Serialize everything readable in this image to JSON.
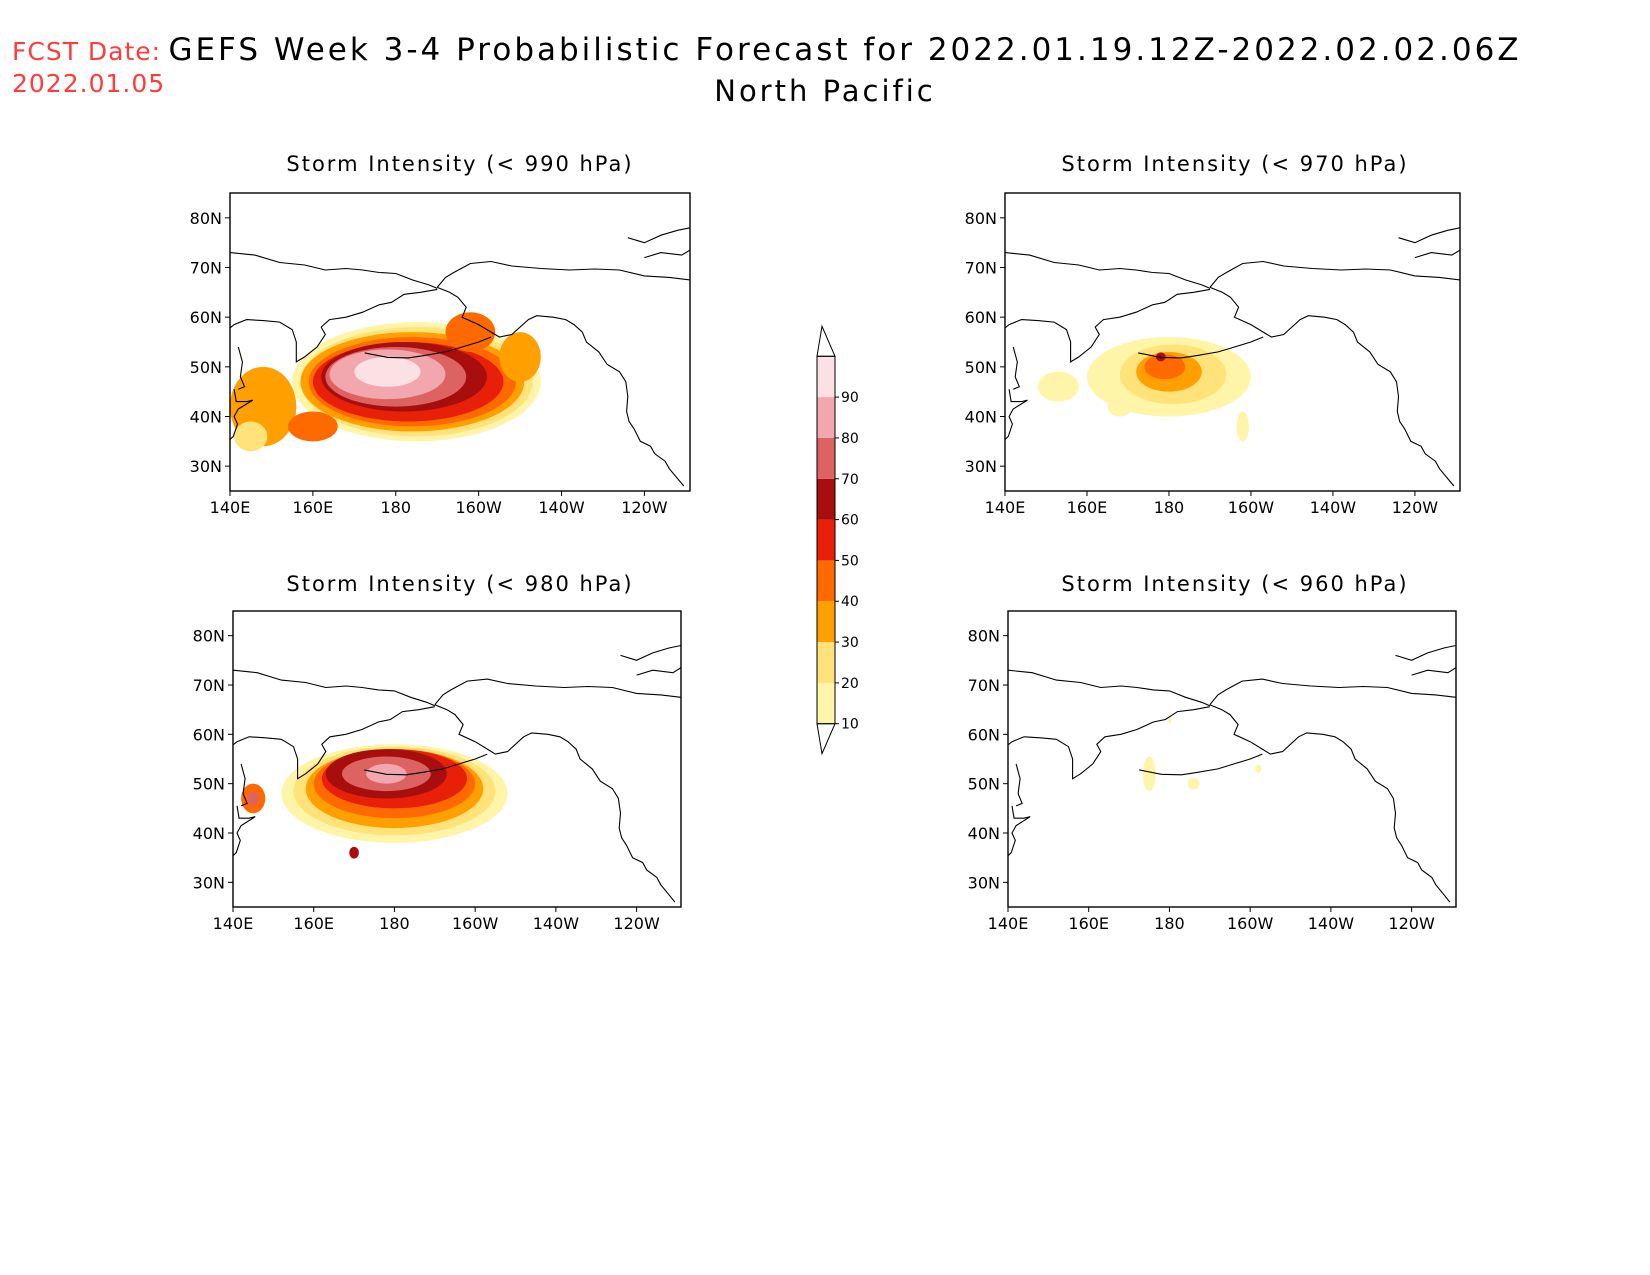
{
  "header": {
    "fcst_label": "FCST Date:",
    "fcst_date": "2022.01.05",
    "title": "GEFS Week 3-4 Probabilistic Forecast for 2022.01.19.12Z-2022.02.02.06Z",
    "subtitle": "North Pacific"
  },
  "axes": {
    "lon_ticks": [
      "140E",
      "160E",
      "180",
      "160W",
      "140W",
      "120W"
    ],
    "lat_ticks": [
      "80N",
      "70N",
      "60N",
      "50N",
      "40N",
      "30N"
    ]
  },
  "colorbar": {
    "levels": [
      "10",
      "20",
      "30",
      "40",
      "50",
      "60",
      "70",
      "80",
      "90"
    ],
    "colors": [
      "#fff5a8",
      "#ffe27a",
      "#ffa000",
      "#ff6a00",
      "#e8200a",
      "#a80e0e",
      "#dd6363",
      "#f2a6ae",
      "#fbe0e4"
    ]
  },
  "panels": [
    {
      "id": "p990",
      "title": "Storm Intensity (< 990 hPa)"
    },
    {
      "id": "p970",
      "title": "Storm Intensity (< 970 hPa)"
    },
    {
      "id": "p980",
      "title": "Storm Intensity (< 980 hPa)"
    },
    {
      "id": "p960",
      "title": "Storm Intensity (< 960 hPa)"
    }
  ]
}
